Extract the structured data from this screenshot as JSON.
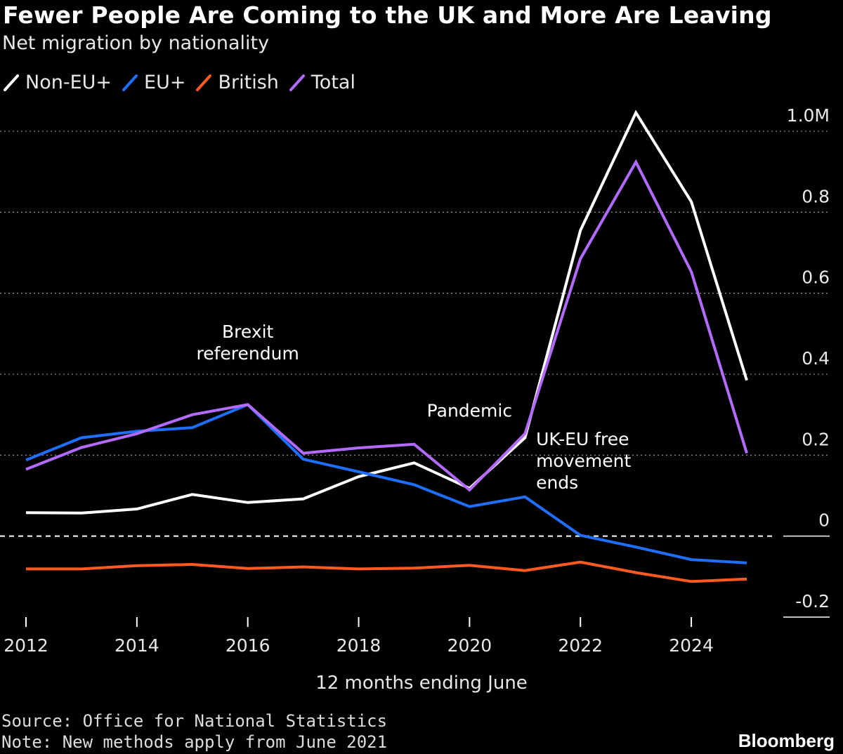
{
  "header": {
    "title": "Fewer People Are Coming to the UK and More Are Leaving",
    "subtitle": "Net migration by nationality"
  },
  "chart_data": {
    "type": "line",
    "title": "Fewer People Are Coming to the UK and More Are Leaving",
    "subtitle": "Net migration by nationality",
    "xlabel": "12 months ending June",
    "ylabel": "",
    "x": [
      2012,
      2013,
      2014,
      2015,
      2016,
      2017,
      2018,
      2019,
      2020,
      2021,
      2022,
      2023,
      2024,
      2025
    ],
    "xlim": [
      2012,
      2025
    ],
    "ylim": [
      -0.2,
      1.0
    ],
    "x_ticks": [
      2012,
      2014,
      2016,
      2018,
      2020,
      2022,
      2024
    ],
    "x_tick_labels": [
      "2012",
      "2014",
      "2016",
      "2018",
      "2020",
      "2022",
      "2024"
    ],
    "y_ticks": [
      -0.2,
      0,
      0.2,
      0.4,
      0.6,
      0.8,
      1.0
    ],
    "y_tick_labels": [
      "-0.2",
      "0",
      "0.2",
      "0.4",
      "0.6",
      "0.8",
      "1.0M"
    ],
    "grid": true,
    "legend_position": "top-left",
    "series": [
      {
        "name": "Non-EU+",
        "color": "#ffffff",
        "values": [
          0.058,
          0.057,
          0.067,
          0.103,
          0.083,
          0.092,
          0.147,
          0.181,
          0.118,
          0.243,
          0.755,
          1.046,
          0.826,
          0.385
        ]
      },
      {
        "name": "EU+",
        "color": "#1f6fff",
        "values": [
          0.188,
          0.243,
          0.259,
          0.268,
          0.325,
          0.19,
          0.159,
          0.127,
          0.073,
          0.097,
          0.002,
          -0.027,
          -0.058,
          -0.066
        ]
      },
      {
        "name": "British",
        "color": "#ff5a1f",
        "values": [
          -0.081,
          -0.081,
          -0.073,
          -0.07,
          -0.08,
          -0.076,
          -0.081,
          -0.079,
          -0.072,
          -0.085,
          -0.064,
          -0.09,
          -0.112,
          -0.106
        ]
      },
      {
        "name": "Total",
        "color": "#b36bff",
        "values": [
          0.165,
          0.219,
          0.253,
          0.3,
          0.325,
          0.205,
          0.218,
          0.227,
          0.114,
          0.253,
          0.685,
          0.924,
          0.653,
          0.205
        ]
      }
    ],
    "annotations": [
      {
        "lines": [
          "Brexit",
          "referendum"
        ],
        "x": 2016.0,
        "y": 0.49,
        "align": "middle"
      },
      {
        "lines": [
          "Pandemic"
        ],
        "x": 2020.0,
        "y": 0.295,
        "align": "middle"
      },
      {
        "lines": [
          "UK-EU free",
          "movement",
          "ends"
        ],
        "x": 2021.2,
        "y": 0.225,
        "align": "start"
      }
    ],
    "source": "Source: Office for National Statistics",
    "note": "Note: New methods apply from June 2021"
  },
  "brand": "Bloomberg"
}
